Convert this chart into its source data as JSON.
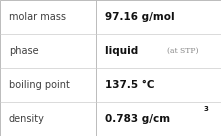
{
  "rows": [
    {
      "label": "molar mass",
      "value": "97.16 g/mol",
      "superscript": null,
      "extra": null
    },
    {
      "label": "phase",
      "value": "liquid",
      "superscript": null,
      "extra": "(at STP)"
    },
    {
      "label": "boiling point",
      "value": "137.5 °C",
      "superscript": null,
      "extra": null
    },
    {
      "label": "density",
      "value": "0.783 g/cm",
      "superscript": "3",
      "extra": null
    }
  ],
  "bg_color": "#ffffff",
  "border_color": "#bbbbbb",
  "label_color": "#404040",
  "value_color": "#111111",
  "extra_color": "#888888",
  "label_fontsize": 7.0,
  "value_fontsize": 7.5,
  "extra_fontsize": 5.5,
  "super_fontsize": 5.0,
  "divider_color": "#cccccc",
  "col_split": 0.435
}
